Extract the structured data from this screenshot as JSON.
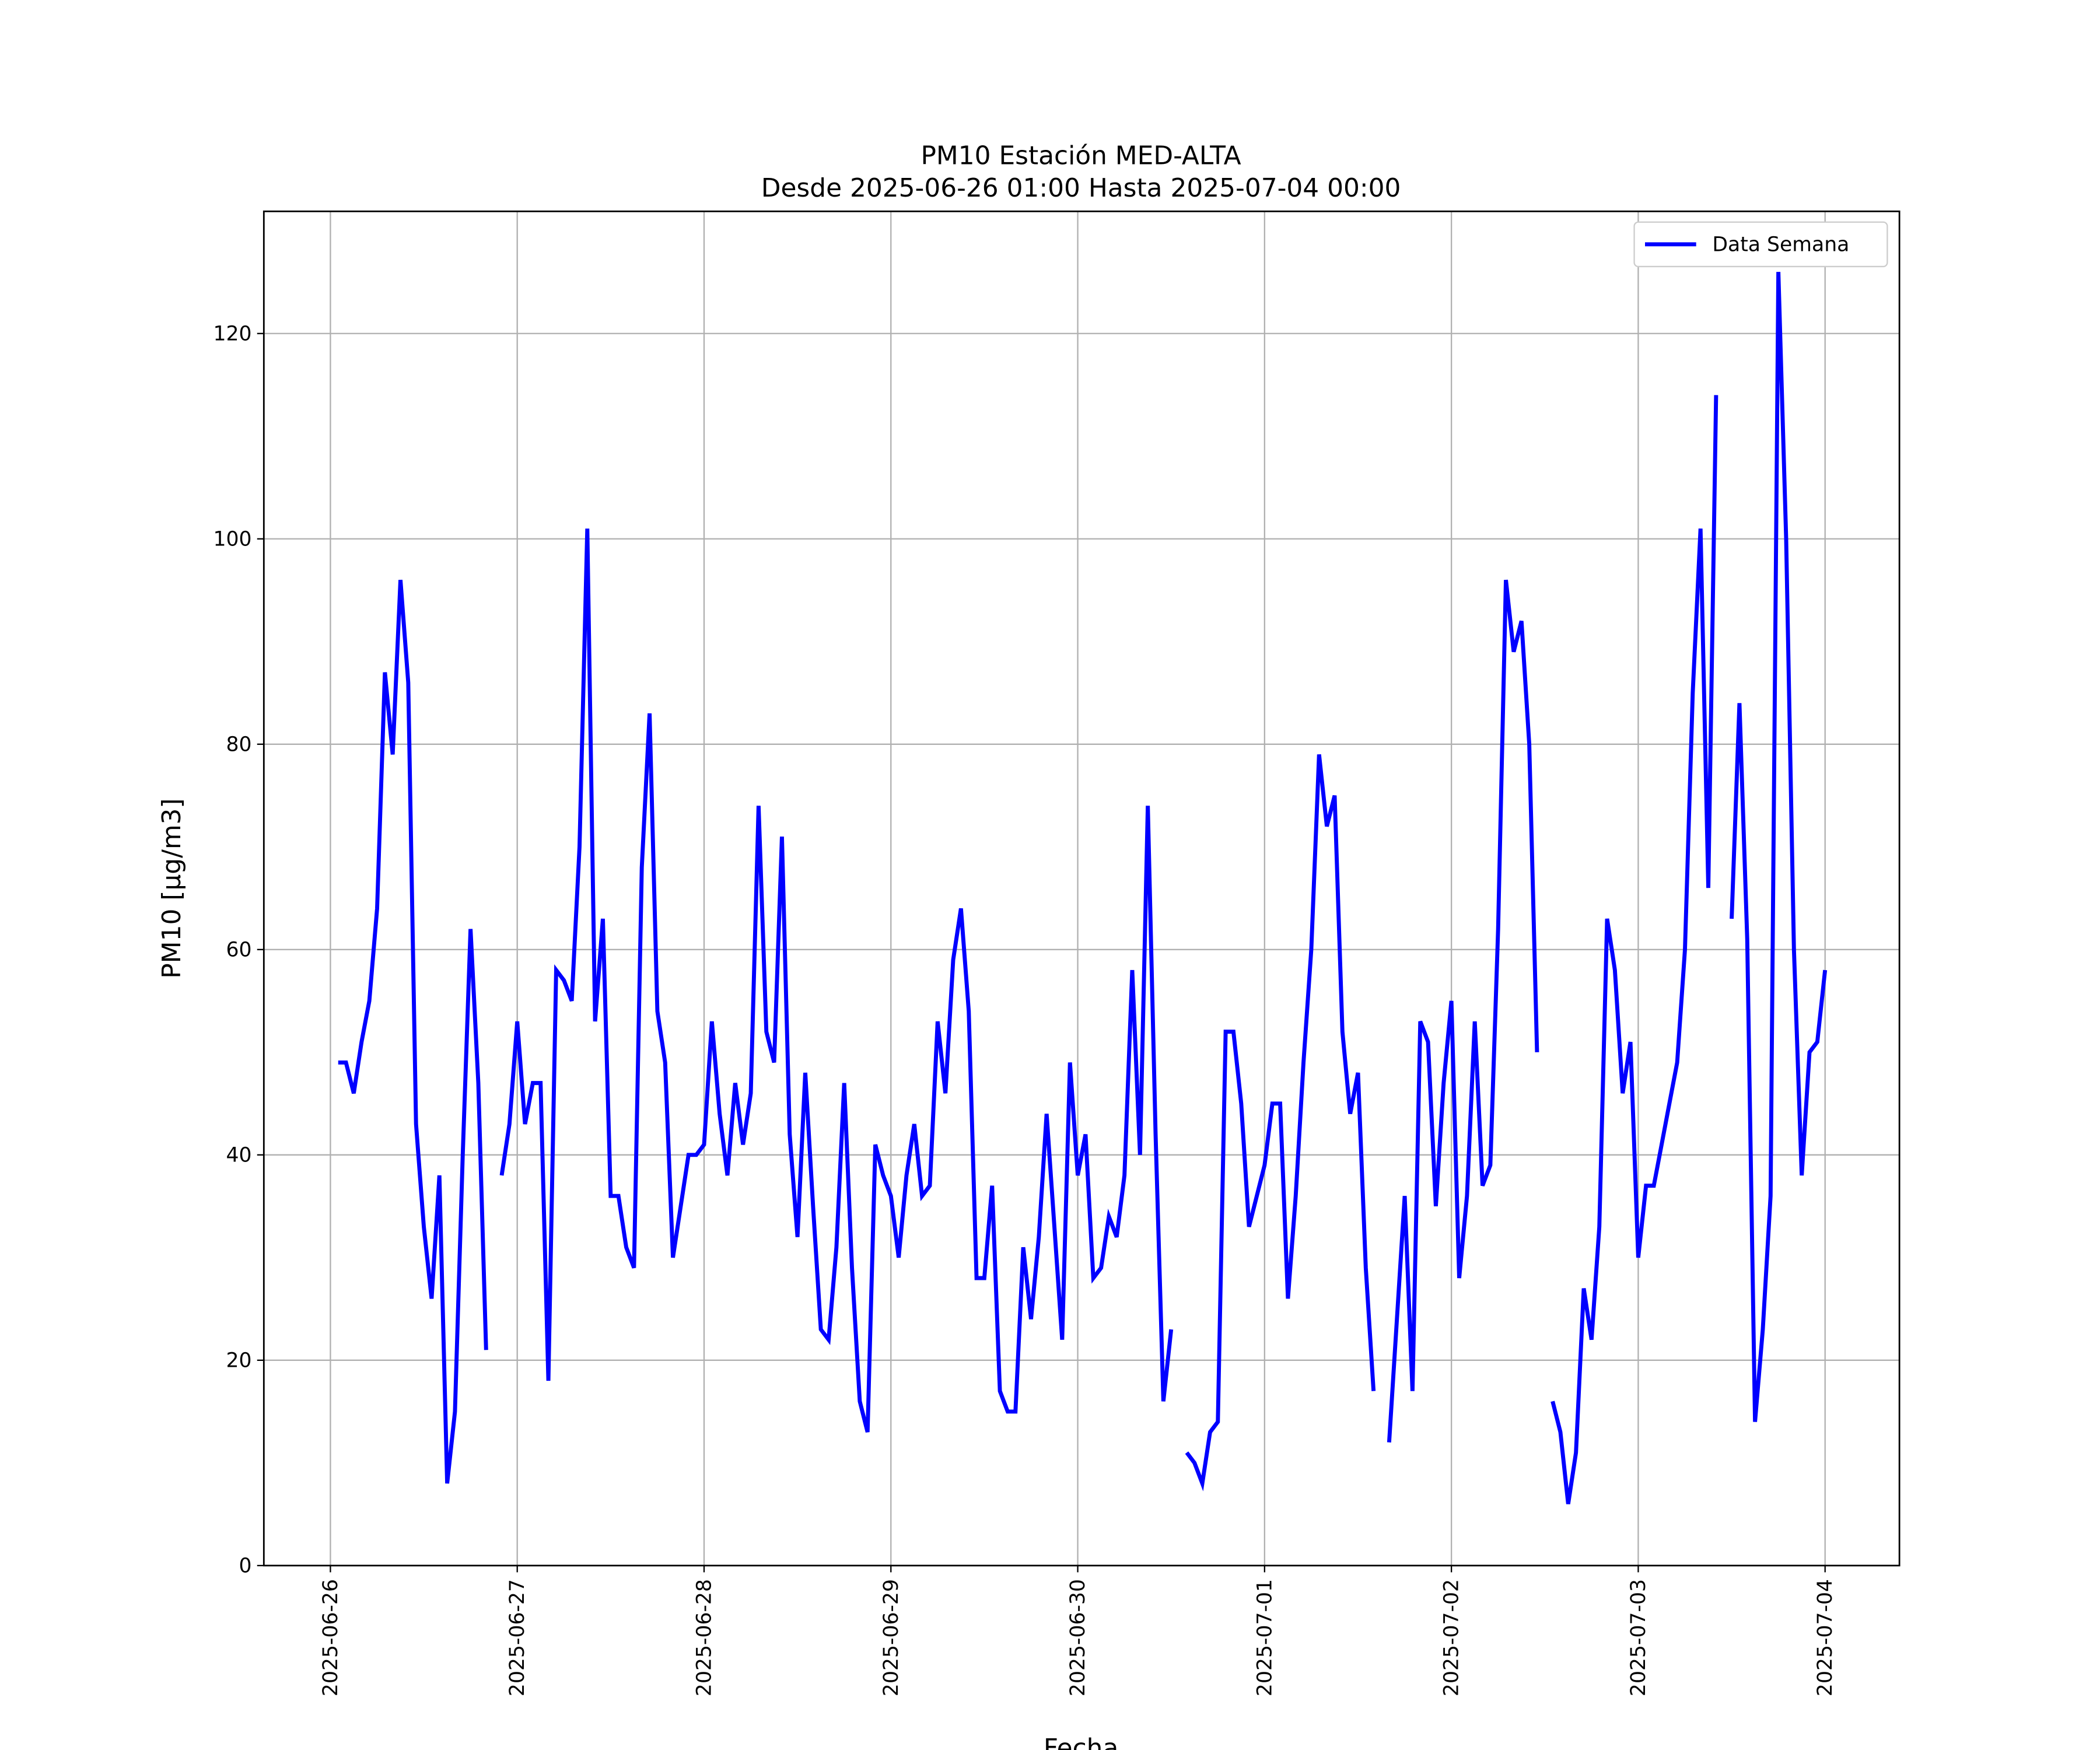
{
  "chart_data": {
    "type": "line",
    "title": "PM10 Estación MED-ALTA",
    "subtitle": "Desde 2025-06-26 01:00 Hasta 2025-07-04 00:00",
    "x_label": "Fecha",
    "y_label": "PM10 [μg/m3]",
    "x": [
      "2025-06-26 01:00",
      "2025-06-26 02:00",
      "2025-06-26 03:00",
      "2025-06-26 04:00",
      "2025-06-26 05:00",
      "2025-06-26 06:00",
      "2025-06-26 07:00",
      "2025-06-26 08:00",
      "2025-06-26 09:00",
      "2025-06-26 10:00",
      "2025-06-26 11:00",
      "2025-06-26 12:00",
      "2025-06-26 13:00",
      "2025-06-26 14:00",
      "2025-06-26 15:00",
      "2025-06-26 16:00",
      "2025-06-26 17:00",
      "2025-06-26 18:00",
      "2025-06-26 19:00",
      "2025-06-26 20:00",
      "2025-06-26 21:00",
      "2025-06-26 22:00",
      "2025-06-26 23:00",
      "2025-06-27 00:00",
      "2025-06-27 01:00",
      "2025-06-27 02:00",
      "2025-06-27 03:00",
      "2025-06-27 04:00",
      "2025-06-27 05:00",
      "2025-06-27 06:00",
      "2025-06-27 07:00",
      "2025-06-27 08:00",
      "2025-06-27 09:00",
      "2025-06-27 10:00",
      "2025-06-27 11:00",
      "2025-06-27 12:00",
      "2025-06-27 13:00",
      "2025-06-27 14:00",
      "2025-06-27 15:00",
      "2025-06-27 16:00",
      "2025-06-27 17:00",
      "2025-06-27 18:00",
      "2025-06-27 19:00",
      "2025-06-27 20:00",
      "2025-06-27 21:00",
      "2025-06-27 22:00",
      "2025-06-27 23:00",
      "2025-06-28 00:00",
      "2025-06-28 01:00",
      "2025-06-28 02:00",
      "2025-06-28 03:00",
      "2025-06-28 04:00",
      "2025-06-28 05:00",
      "2025-06-28 06:00",
      "2025-06-28 07:00",
      "2025-06-28 08:00",
      "2025-06-28 09:00",
      "2025-06-28 10:00",
      "2025-06-28 11:00",
      "2025-06-28 12:00",
      "2025-06-28 13:00",
      "2025-06-28 14:00",
      "2025-06-28 15:00",
      "2025-06-28 16:00",
      "2025-06-28 17:00",
      "2025-06-28 18:00",
      "2025-06-28 19:00",
      "2025-06-28 20:00",
      "2025-06-28 21:00",
      "2025-06-28 22:00",
      "2025-06-28 23:00",
      "2025-06-29 00:00",
      "2025-06-29 01:00",
      "2025-06-29 02:00",
      "2025-06-29 03:00",
      "2025-06-29 04:00",
      "2025-06-29 05:00",
      "2025-06-29 06:00",
      "2025-06-29 07:00",
      "2025-06-29 08:00",
      "2025-06-29 09:00",
      "2025-06-29 10:00",
      "2025-06-29 11:00",
      "2025-06-29 12:00",
      "2025-06-29 13:00",
      "2025-06-29 14:00",
      "2025-06-29 15:00",
      "2025-06-29 16:00",
      "2025-06-29 17:00",
      "2025-06-29 18:00",
      "2025-06-29 19:00",
      "2025-06-29 20:00",
      "2025-06-29 21:00",
      "2025-06-29 22:00",
      "2025-06-29 23:00",
      "2025-06-30 00:00",
      "2025-06-30 01:00",
      "2025-06-30 02:00",
      "2025-06-30 03:00",
      "2025-06-30 04:00",
      "2025-06-30 05:00",
      "2025-06-30 06:00",
      "2025-06-30 07:00",
      "2025-06-30 08:00",
      "2025-06-30 09:00",
      "2025-06-30 10:00",
      "2025-06-30 11:00",
      "2025-06-30 12:00",
      "2025-06-30 13:00",
      "2025-06-30 14:00",
      "2025-06-30 15:00",
      "2025-06-30 16:00",
      "2025-06-30 17:00",
      "2025-06-30 18:00",
      "2025-06-30 19:00",
      "2025-06-30 20:00",
      "2025-06-30 21:00",
      "2025-06-30 22:00",
      "2025-06-30 23:00",
      "2025-07-01 00:00",
      "2025-07-01 01:00",
      "2025-07-01 02:00",
      "2025-07-01 03:00",
      "2025-07-01 04:00",
      "2025-07-01 05:00",
      "2025-07-01 06:00",
      "2025-07-01 07:00",
      "2025-07-01 08:00",
      "2025-07-01 09:00",
      "2025-07-01 10:00",
      "2025-07-01 11:00",
      "2025-07-01 12:00",
      "2025-07-01 13:00",
      "2025-07-01 14:00",
      "2025-07-01 15:00",
      "2025-07-01 16:00",
      "2025-07-01 17:00",
      "2025-07-01 18:00",
      "2025-07-01 19:00",
      "2025-07-01 20:00",
      "2025-07-01 21:00",
      "2025-07-01 22:00",
      "2025-07-01 23:00",
      "2025-07-02 00:00",
      "2025-07-02 01:00",
      "2025-07-02 02:00",
      "2025-07-02 03:00",
      "2025-07-02 04:00",
      "2025-07-02 05:00",
      "2025-07-02 06:00",
      "2025-07-02 07:00",
      "2025-07-02 08:00",
      "2025-07-02 09:00",
      "2025-07-02 10:00",
      "2025-07-02 11:00",
      "2025-07-02 12:00",
      "2025-07-02 13:00",
      "2025-07-02 14:00",
      "2025-07-02 15:00",
      "2025-07-02 16:00",
      "2025-07-02 17:00",
      "2025-07-02 18:00",
      "2025-07-02 19:00",
      "2025-07-02 20:00",
      "2025-07-02 21:00",
      "2025-07-02 22:00",
      "2025-07-02 23:00",
      "2025-07-03 00:00",
      "2025-07-03 01:00",
      "2025-07-03 02:00",
      "2025-07-03 03:00",
      "2025-07-03 04:00",
      "2025-07-03 05:00",
      "2025-07-03 06:00",
      "2025-07-03 07:00",
      "2025-07-03 08:00",
      "2025-07-03 09:00",
      "2025-07-03 10:00",
      "2025-07-03 11:00",
      "2025-07-03 12:00",
      "2025-07-03 13:00",
      "2025-07-03 14:00",
      "2025-07-03 15:00",
      "2025-07-03 16:00",
      "2025-07-03 17:00",
      "2025-07-03 18:00",
      "2025-07-03 19:00",
      "2025-07-03 20:00",
      "2025-07-03 21:00",
      "2025-07-03 22:00",
      "2025-07-03 23:00",
      "2025-07-04 00:00"
    ],
    "series": [
      {
        "name": "Data Semana",
        "color": "#0000ff",
        "values": [
          49,
          49,
          46,
          51,
          55,
          64,
          87,
          79,
          96,
          86,
          43,
          33,
          26,
          38,
          8,
          15,
          40,
          62,
          47,
          21,
          null,
          38,
          43,
          53,
          43,
          47,
          47,
          18,
          58,
          57,
          55,
          70,
          101,
          53,
          63,
          36,
          36,
          31,
          29,
          68,
          83,
          54,
          49,
          30,
          35,
          40,
          40,
          41,
          53,
          44,
          38,
          47,
          41,
          46,
          74,
          52,
          49,
          71,
          42,
          32,
          48,
          35,
          23,
          22,
          31,
          47,
          29,
          16,
          13,
          41,
          38,
          36,
          30,
          38,
          43,
          36,
          37,
          53,
          46,
          59,
          64,
          54,
          28,
          28,
          37,
          17,
          15,
          15,
          31,
          24,
          32,
          44,
          33,
          22,
          49,
          38,
          42,
          28,
          29,
          34,
          32,
          38,
          58,
          40,
          74,
          42,
          16,
          23,
          null,
          11,
          10,
          8,
          13,
          14,
          52,
          52,
          45,
          33,
          36,
          39,
          45,
          45,
          26,
          36,
          49,
          60,
          79,
          72,
          75,
          52,
          44,
          48,
          29,
          17,
          null,
          12,
          24,
          36,
          17,
          53,
          51,
          35,
          47,
          55,
          28,
          36,
          53,
          37,
          39,
          62,
          96,
          89,
          92,
          80,
          50,
          null,
          16,
          13,
          6,
          11,
          27,
          22,
          33,
          63,
          58,
          46,
          51,
          30,
          37,
          37,
          41,
          45,
          49,
          60,
          85,
          101,
          66,
          114,
          null,
          63,
          84,
          61,
          14,
          23,
          36,
          126,
          100,
          60,
          38,
          50,
          51,
          58
        ]
      }
    ],
    "xlim": [
      "2025-06-25 15:27",
      "2025-07-04 09:33"
    ],
    "xticks": [
      "2025-06-26",
      "2025-06-27",
      "2025-06-28",
      "2025-06-29",
      "2025-06-30",
      "2025-07-01",
      "2025-07-02",
      "2025-07-03",
      "2025-07-04"
    ],
    "ylim": [
      0,
      131.9
    ],
    "yticks": [
      0,
      20,
      40,
      60,
      80,
      100,
      120
    ],
    "grid": true,
    "legend": "upper right"
  }
}
